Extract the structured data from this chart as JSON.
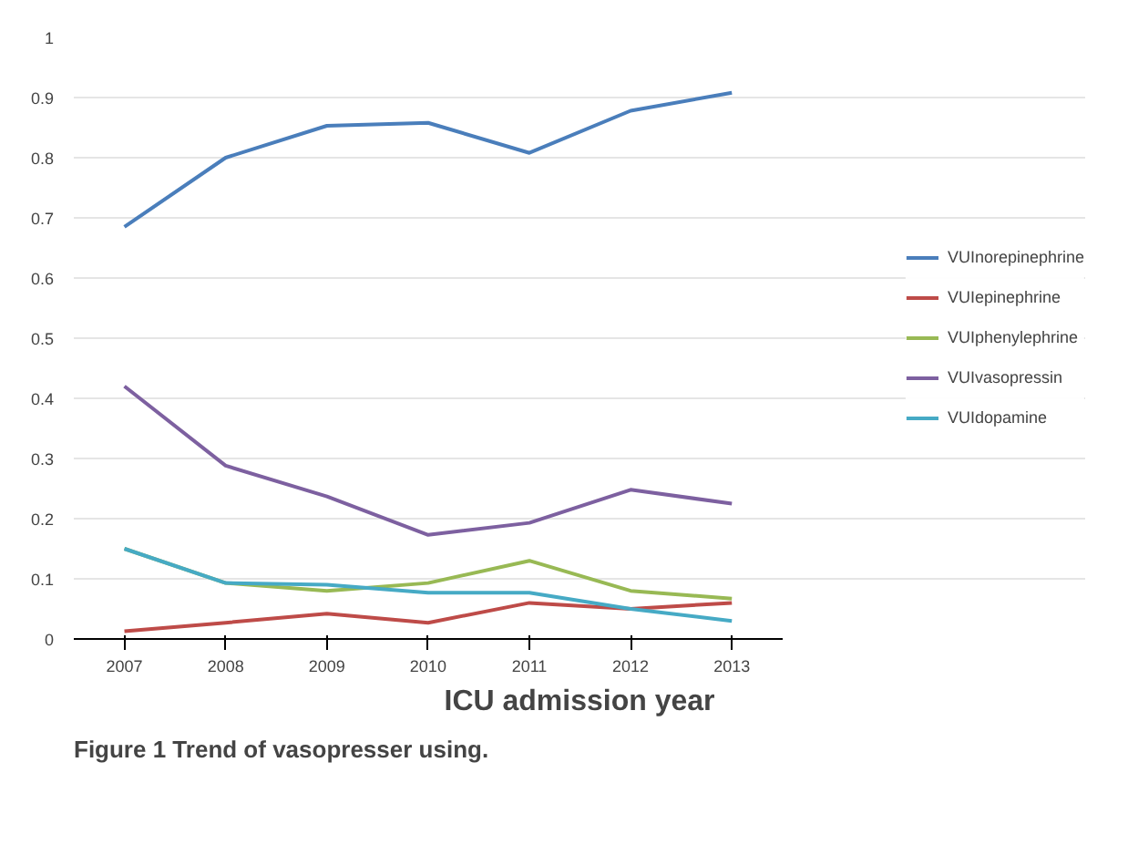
{
  "chart_data": {
    "type": "line",
    "title": "Figure 1 Trend of vasopresser using.",
    "xlabel": "ICU admission year",
    "categories": [
      "2007",
      "2008",
      "2009",
      "2010",
      "2011",
      "2012",
      "2013"
    ],
    "ylim": [
      0,
      1
    ],
    "yticks": [
      0,
      0.1,
      0.2,
      0.3,
      0.4,
      0.5,
      0.6,
      0.7,
      0.8,
      0.9,
      1
    ],
    "grid": "y",
    "legend": "right",
    "series": [
      {
        "name": "VUInorepinephrine",
        "color": "#4a7ebb",
        "values": [
          0.685,
          0.8,
          0.853,
          0.858,
          0.808,
          0.878,
          0.908
        ]
      },
      {
        "name": "VUIepinephrine",
        "color": "#be4b48",
        "values": [
          0.013,
          0.027,
          0.042,
          0.027,
          0.06,
          0.05,
          0.06
        ]
      },
      {
        "name": "VUIphenylephrine",
        "color": "#98b954",
        "values": [
          0.15,
          0.093,
          0.08,
          0.093,
          0.13,
          0.08,
          0.067
        ]
      },
      {
        "name": "VUIvasopressin",
        "color": "#7d60a0",
        "values": [
          0.42,
          0.288,
          0.237,
          0.173,
          0.193,
          0.248,
          0.225
        ]
      },
      {
        "name": "VUIdopamine",
        "color": "#46aac5",
        "values": [
          0.15,
          0.093,
          0.09,
          0.077,
          0.077,
          0.05,
          0.03
        ]
      }
    ]
  }
}
